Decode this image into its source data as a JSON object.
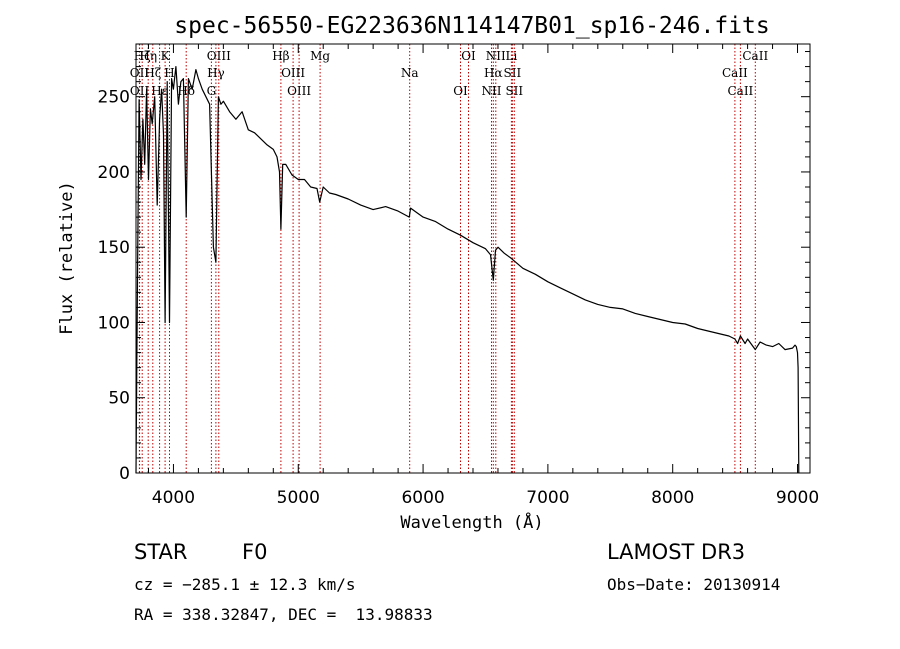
{
  "chart_data": {
    "type": "line",
    "title": "spec-56550-EG223636N114147B01_sp16-246.fits",
    "xlabel": "Wavelength (Å)",
    "ylabel": "Flux (relative)",
    "xlim": [
      3700,
      9100
    ],
    "ylim": [
      0,
      285
    ],
    "xticks": [
      4000,
      5000,
      6000,
      7000,
      8000,
      9000
    ],
    "yticks": [
      0,
      50,
      100,
      150,
      200,
      250
    ],
    "series": [
      {
        "name": "spectrum",
        "color": "#000000",
        "x": [
          3700,
          3712,
          3725,
          3740,
          3755,
          3770,
          3785,
          3800,
          3815,
          3830,
          3850,
          3870,
          3889,
          3905,
          3920,
          3933,
          3950,
          3968,
          3985,
          4000,
          4020,
          4040,
          4060,
          4080,
          4102,
          4120,
          4150,
          4180,
          4200,
          4230,
          4260,
          4290,
          4320,
          4340,
          4360,
          4380,
          4400,
          4450,
          4500,
          4550,
          4600,
          4650,
          4700,
          4750,
          4800,
          4830,
          4850,
          4861,
          4875,
          4900,
          4950,
          5000,
          5050,
          5100,
          5150,
          5172,
          5200,
          5250,
          5300,
          5400,
          5500,
          5600,
          5700,
          5800,
          5890,
          5900,
          5950,
          6000,
          6100,
          6200,
          6300,
          6400,
          6500,
          6540,
          6563,
          6580,
          6600,
          6650,
          6700,
          6800,
          6900,
          7000,
          7100,
          7200,
          7300,
          7400,
          7500,
          7600,
          7700,
          7800,
          7900,
          8000,
          8100,
          8200,
          8300,
          8400,
          8450,
          8498,
          8520,
          8542,
          8580,
          8600,
          8662,
          8700,
          8750,
          8800,
          8850,
          8900,
          8960,
          8980,
          8990,
          9000,
          9005,
          9010
        ],
        "y": [
          0,
          130,
          248,
          195,
          235,
          205,
          255,
          195,
          242,
          232,
          250,
          178,
          235,
          255,
          225,
          100,
          260,
          100,
          262,
          255,
          270,
          245,
          260,
          262,
          170,
          262,
          255,
          268,
          262,
          255,
          250,
          245,
          150,
          140,
          250,
          245,
          247,
          240,
          235,
          240,
          228,
          226,
          222,
          218,
          215,
          210,
          200,
          162,
          205,
          205,
          198,
          195,
          195,
          190,
          189,
          180,
          190,
          186,
          185,
          182,
          178,
          175,
          177,
          174,
          170,
          176,
          173,
          170,
          167,
          162,
          158,
          153,
          149,
          145,
          128,
          148,
          150,
          146,
          143,
          136,
          132,
          127,
          123,
          119,
          115,
          112,
          110,
          109,
          106,
          104,
          102,
          100,
          99,
          96,
          94,
          92,
          91,
          89,
          86,
          91,
          86,
          89,
          82,
          87,
          85,
          84,
          86,
          82,
          83,
          85,
          84,
          80,
          70,
          0
        ]
      }
    ],
    "spectral_lines": [
      {
        "label": "Hζ",
        "wavelength": 3750
      },
      {
        "label": "OII",
        "wavelength": 3727
      },
      {
        "label": "OII",
        "wavelength": 3729
      },
      {
        "label": "Hη",
        "wavelength": 3798
      },
      {
        "label": "Hζ",
        "wavelength": 3835
      },
      {
        "label": "Hε",
        "wavelength": 3889
      },
      {
        "label": "K",
        "wavelength": 3933
      },
      {
        "label": "H",
        "wavelength": 3968
      },
      {
        "label": "Hδ",
        "wavelength": 4102
      },
      {
        "label": "OIII",
        "wavelength": 4363
      },
      {
        "label": "Hγ",
        "wavelength": 4340
      },
      {
        "label": "G",
        "wavelength": 4304
      },
      {
        "label": "Hβ",
        "wavelength": 4861
      },
      {
        "label": "OIII",
        "wavelength": 4959
      },
      {
        "label": "OIII",
        "wavelength": 5007
      },
      {
        "label": "Mg",
        "wavelength": 5175
      },
      {
        "label": "Na",
        "wavelength": 5893
      },
      {
        "label": "OI",
        "wavelength": 6300
      },
      {
        "label": "OI",
        "wavelength": 6364
      },
      {
        "label": "Hα",
        "wavelength": 6563
      },
      {
        "label": "NII",
        "wavelength": 6548
      },
      {
        "label": "NII",
        "wavelength": 6583
      },
      {
        "label": "SII",
        "wavelength": 6716
      },
      {
        "label": "SII",
        "wavelength": 6731
      },
      {
        "label": "Li",
        "wavelength": 6708
      },
      {
        "label": "CaII",
        "wavelength": 8498
      },
      {
        "label": "CaII",
        "wavelength": 8542
      },
      {
        "label": "CaII",
        "wavelength": 8662
      }
    ],
    "line_color": "#c00000"
  },
  "info": {
    "object_class": "STAR",
    "subclass": "F0",
    "survey": "LAMOST DR3",
    "cz": "cz = −285.1 ± 12.3 km/s",
    "obs_date": "Obs−Date: 20130914",
    "coords": "RA = 338.32847, DEC =  13.98833"
  }
}
